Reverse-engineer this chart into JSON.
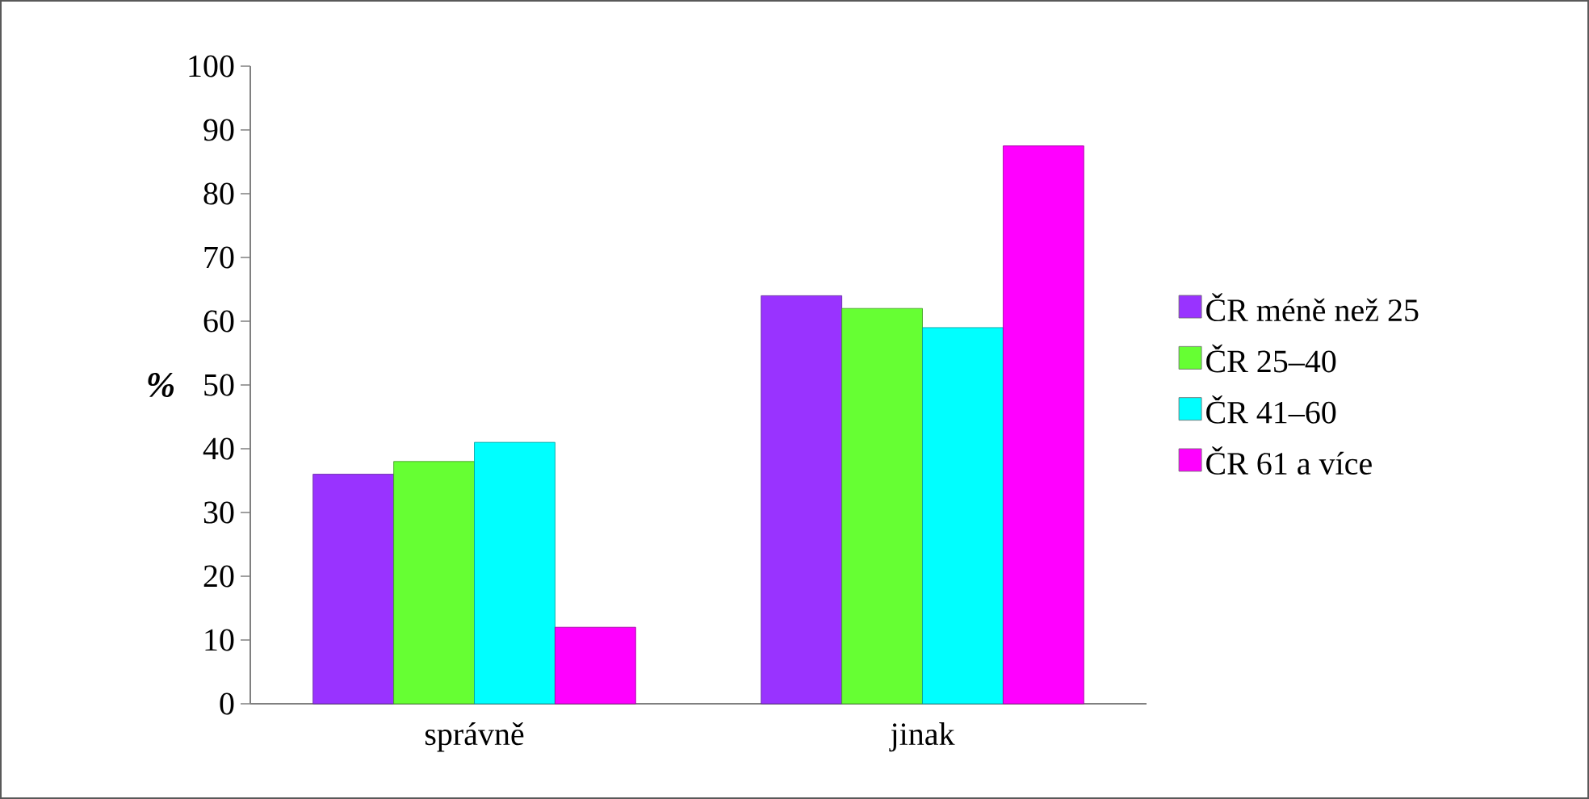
{
  "chart_data": {
    "type": "bar",
    "categories": [
      "správně",
      "jinak"
    ],
    "ylabel": "%",
    "series": [
      {
        "name": "ČR méně než 25",
        "color": "#9933ff",
        "values": [
          36,
          64
        ]
      },
      {
        "name": "ČR 25–40",
        "color": "#66ff33",
        "values": [
          38,
          62
        ]
      },
      {
        "name": "ČR 41–60",
        "color": "#00ffff",
        "values": [
          41,
          59
        ]
      },
      {
        "name": "ČR 61 a více",
        "color": "#ff00ff",
        "values": [
          12,
          87.5
        ]
      }
    ],
    "ylim": [
      0,
      100
    ],
    "yticks": [
      0,
      10,
      20,
      30,
      40,
      50,
      60,
      70,
      80,
      90,
      100
    ],
    "grid": false,
    "legend": "right"
  }
}
